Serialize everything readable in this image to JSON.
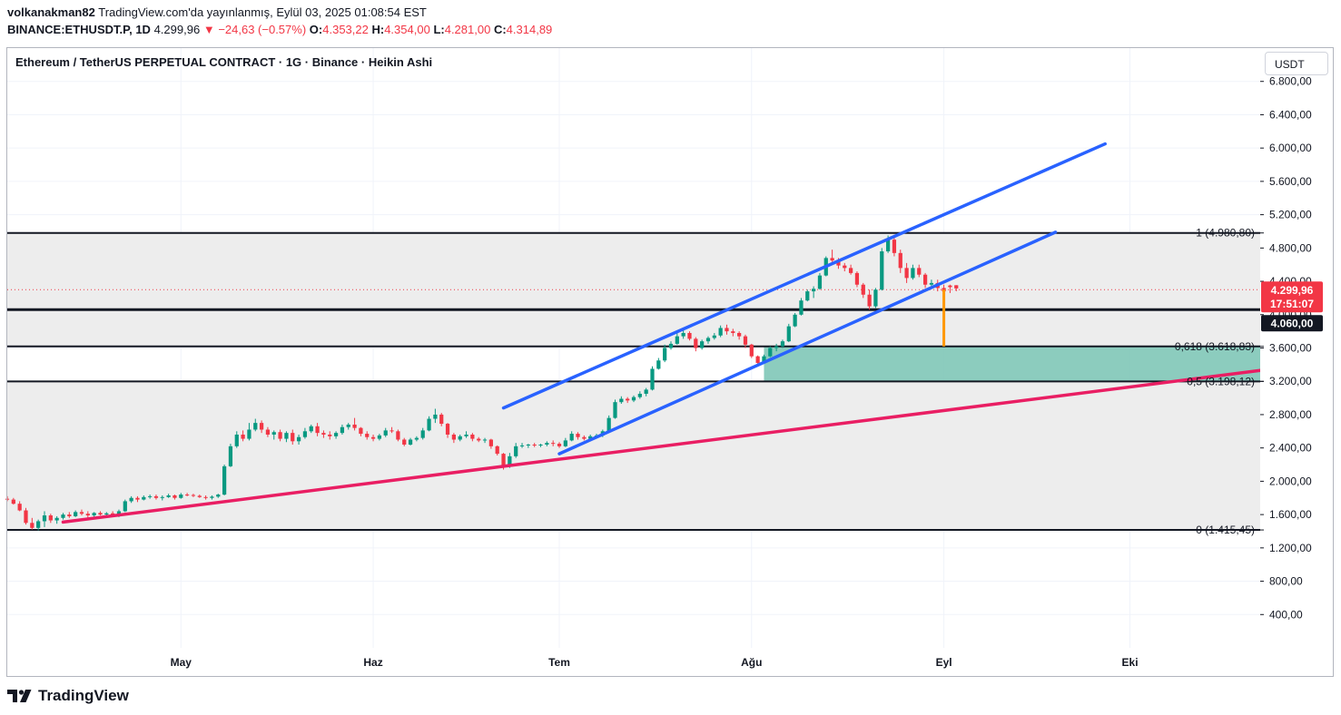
{
  "header": {
    "user": "volkanakman82",
    "published": "TradingView.com'da yayınlanmış, Eylül 03, 2025 01:08:54 EST",
    "symbol": "BINANCE:ETHUSDT.P, 1D",
    "last": "4.299,96",
    "change": "−24,63 (−0.57%)",
    "o_label": "O:",
    "o": "4.353,22",
    "h_label": "H:",
    "h": "4.354,00",
    "l_label": "L:",
    "l": "4.281,00",
    "c_label": "C:",
    "c": "4.314,89"
  },
  "chart_title": "Ethereum / TetherUS PERPETUAL CONTRACT · 1G · Binance · Heikin Ashi",
  "currency_button": "USDT",
  "footer": {
    "brand": "TradingView"
  },
  "colors": {
    "up": "#089981",
    "down": "#f23645",
    "channel": "#2962ff",
    "trend": "#e91e63",
    "zone": "#80c7b7",
    "band": "#ededed",
    "marker": "#ff9800"
  },
  "chart_data": {
    "type": "candlestick",
    "title": "Ethereum / TetherUS PERPETUAL CONTRACT · 1G · Binance · Heikin Ashi",
    "y_ticks": [
      400,
      800,
      1200,
      1600,
      2000,
      2400,
      2800,
      3200,
      3600,
      4000,
      4400,
      4800,
      5200,
      5600,
      6000,
      6400,
      6800
    ],
    "y_tick_labels": [
      "400,00",
      "800,00",
      "1.200,00",
      "1.600,00",
      "2.000,00",
      "2.400,00",
      "2.800,00",
      "3.200,00",
      "3.600,00",
      "4.000,00",
      "4.400,00",
      "4.800,00",
      "5.200,00",
      "5.600,00",
      "6.000,00",
      "6.400,00",
      "6.800,00"
    ],
    "ylim": [
      0,
      7200
    ],
    "x_months": [
      {
        "label": "May",
        "date": "2025-05-01"
      },
      {
        "label": "Haz",
        "date": "2025-06-01"
      },
      {
        "label": "Tem",
        "date": "2025-07-01"
      },
      {
        "label": "Ağu",
        "date": "2025-08-01"
      },
      {
        "label": "Eyl",
        "date": "2025-09-01"
      },
      {
        "label": "Eki",
        "date": "2025-10-01"
      }
    ],
    "xlim": [
      "2025-04-03",
      "2025-10-22"
    ],
    "current_price": {
      "value": 4299.96,
      "label": "4.299,96",
      "countdown": "17:51:07"
    },
    "support_line": {
      "value": 4060,
      "label": "4.060,00"
    },
    "fib_levels": [
      {
        "value": 4980.8,
        "label": "1 (4.980,80)"
      },
      {
        "value": 3618.83,
        "label": "0,618 (3.618,83)"
      },
      {
        "value": 3198.12,
        "label": "0,5 (3.198,12)"
      },
      {
        "value": 1415.45,
        "label": "0 (1.415,45)"
      }
    ],
    "trend_line": {
      "from": [
        "2025-04-12",
        1510
      ],
      "to": [
        "2025-10-22",
        3330
      ]
    },
    "channel_upper": {
      "from": [
        "2025-06-22",
        2880
      ],
      "to": [
        "2025-09-27",
        6050
      ]
    },
    "channel_lower": {
      "from": [
        "2025-07-01",
        2330
      ],
      "to": [
        "2025-09-19",
        4990
      ]
    },
    "target_zone": {
      "from": "2025-08-03",
      "to": "2025-10-22",
      "top": 3618.83,
      "bottom": 3198.12
    },
    "marker_line": {
      "date": "2025-09-01",
      "from": 4300,
      "to": 3618.83
    },
    "candles": [
      [
        "2025-04-03",
        1790,
        1820,
        1760,
        1780
      ],
      [
        "2025-04-04",
        1780,
        1800,
        1720,
        1730
      ],
      [
        "2025-04-05",
        1730,
        1760,
        1640,
        1650
      ],
      [
        "2025-04-06",
        1650,
        1680,
        1480,
        1500
      ],
      [
        "2025-04-07",
        1500,
        1560,
        1420,
        1440
      ],
      [
        "2025-04-08",
        1440,
        1540,
        1410,
        1520
      ],
      [
        "2025-04-09",
        1520,
        1640,
        1450,
        1590
      ],
      [
        "2025-04-10",
        1590,
        1610,
        1500,
        1530
      ],
      [
        "2025-04-11",
        1530,
        1580,
        1490,
        1560
      ],
      [
        "2025-04-12",
        1560,
        1620,
        1540,
        1600
      ],
      [
        "2025-04-13",
        1600,
        1630,
        1560,
        1580
      ],
      [
        "2025-04-14",
        1580,
        1650,
        1570,
        1630
      ],
      [
        "2025-04-15",
        1630,
        1660,
        1590,
        1610
      ],
      [
        "2025-04-16",
        1610,
        1640,
        1560,
        1590
      ],
      [
        "2025-04-17",
        1590,
        1630,
        1570,
        1620
      ],
      [
        "2025-04-18",
        1620,
        1640,
        1590,
        1600
      ],
      [
        "2025-04-19",
        1600,
        1630,
        1580,
        1615
      ],
      [
        "2025-04-20",
        1615,
        1640,
        1590,
        1600
      ],
      [
        "2025-04-21",
        1600,
        1660,
        1570,
        1640
      ],
      [
        "2025-04-22",
        1640,
        1780,
        1630,
        1760
      ],
      [
        "2025-04-23",
        1760,
        1820,
        1740,
        1800
      ],
      [
        "2025-04-24",
        1800,
        1820,
        1750,
        1780
      ],
      [
        "2025-04-25",
        1780,
        1830,
        1770,
        1810
      ],
      [
        "2025-04-26",
        1810,
        1840,
        1790,
        1820
      ],
      [
        "2025-04-27",
        1820,
        1840,
        1780,
        1800
      ],
      [
        "2025-04-28",
        1800,
        1830,
        1770,
        1810
      ],
      [
        "2025-04-29",
        1810,
        1850,
        1800,
        1830
      ],
      [
        "2025-04-30",
        1830,
        1840,
        1780,
        1800
      ],
      [
        "2025-05-01",
        1800,
        1860,
        1790,
        1840
      ],
      [
        "2025-05-02",
        1840,
        1860,
        1820,
        1835
      ],
      [
        "2025-05-03",
        1835,
        1850,
        1810,
        1825
      ],
      [
        "2025-05-04",
        1825,
        1840,
        1800,
        1810
      ],
      [
        "2025-05-05",
        1810,
        1830,
        1780,
        1800
      ],
      [
        "2025-05-06",
        1800,
        1830,
        1780,
        1815
      ],
      [
        "2025-05-07",
        1815,
        1850,
        1800,
        1840
      ],
      [
        "2025-05-08",
        1840,
        2200,
        1830,
        2180
      ],
      [
        "2025-05-09",
        2180,
        2450,
        2170,
        2420
      ],
      [
        "2025-05-10",
        2420,
        2600,
        2400,
        2560
      ],
      [
        "2025-05-11",
        2560,
        2610,
        2480,
        2510
      ],
      [
        "2025-05-12",
        2510,
        2700,
        2490,
        2620
      ],
      [
        "2025-05-13",
        2620,
        2750,
        2600,
        2700
      ],
      [
        "2025-05-14",
        2700,
        2730,
        2580,
        2620
      ],
      [
        "2025-05-15",
        2620,
        2650,
        2530,
        2560
      ],
      [
        "2025-05-16",
        2560,
        2610,
        2500,
        2590
      ],
      [
        "2025-05-17",
        2590,
        2620,
        2480,
        2510
      ],
      [
        "2025-05-18",
        2510,
        2600,
        2470,
        2580
      ],
      [
        "2025-05-19",
        2580,
        2620,
        2440,
        2480
      ],
      [
        "2025-05-20",
        2480,
        2560,
        2440,
        2530
      ],
      [
        "2025-05-21",
        2530,
        2640,
        2510,
        2600
      ],
      [
        "2025-05-22",
        2600,
        2680,
        2580,
        2660
      ],
      [
        "2025-05-23",
        2660,
        2700,
        2540,
        2580
      ],
      [
        "2025-05-24",
        2580,
        2610,
        2520,
        2560
      ],
      [
        "2025-05-25",
        2560,
        2600,
        2500,
        2540
      ],
      [
        "2025-05-26",
        2540,
        2600,
        2510,
        2580
      ],
      [
        "2025-05-27",
        2580,
        2680,
        2560,
        2650
      ],
      [
        "2025-05-28",
        2650,
        2700,
        2620,
        2680
      ],
      [
        "2025-05-29",
        2680,
        2760,
        2610,
        2640
      ],
      [
        "2025-05-30",
        2640,
        2650,
        2540,
        2570
      ],
      [
        "2025-05-31",
        2570,
        2600,
        2500,
        2530
      ],
      [
        "2025-06-01",
        2530,
        2560,
        2480,
        2510
      ],
      [
        "2025-06-02",
        2510,
        2570,
        2490,
        2550
      ],
      [
        "2025-06-03",
        2550,
        2640,
        2530,
        2610
      ],
      [
        "2025-06-04",
        2610,
        2650,
        2580,
        2600
      ],
      [
        "2025-06-05",
        2600,
        2620,
        2480,
        2500
      ],
      [
        "2025-06-06",
        2500,
        2520,
        2420,
        2440
      ],
      [
        "2025-06-07",
        2440,
        2520,
        2430,
        2500
      ],
      [
        "2025-06-08",
        2500,
        2540,
        2480,
        2520
      ],
      [
        "2025-06-09",
        2520,
        2640,
        2500,
        2610
      ],
      [
        "2025-06-10",
        2610,
        2780,
        2600,
        2750
      ],
      [
        "2025-06-11",
        2750,
        2870,
        2700,
        2800
      ],
      [
        "2025-06-12",
        2800,
        2820,
        2660,
        2690
      ],
      [
        "2025-06-13",
        2690,
        2700,
        2520,
        2560
      ],
      [
        "2025-06-14",
        2560,
        2580,
        2460,
        2500
      ],
      [
        "2025-06-15",
        2500,
        2560,
        2480,
        2540
      ],
      [
        "2025-06-16",
        2540,
        2600,
        2520,
        2560
      ],
      [
        "2025-06-17",
        2560,
        2580,
        2480,
        2510
      ],
      [
        "2025-06-18",
        2510,
        2530,
        2470,
        2490
      ],
      [
        "2025-06-19",
        2490,
        2520,
        2460,
        2500
      ],
      [
        "2025-06-20",
        2500,
        2510,
        2390,
        2420
      ],
      [
        "2025-06-21",
        2420,
        2430,
        2310,
        2330
      ],
      [
        "2025-06-22",
        2330,
        2340,
        2140,
        2190
      ],
      [
        "2025-06-23",
        2190,
        2340,
        2160,
        2300
      ],
      [
        "2025-06-24",
        2300,
        2460,
        2280,
        2420
      ],
      [
        "2025-06-25",
        2420,
        2460,
        2400,
        2430
      ],
      [
        "2025-06-26",
        2430,
        2450,
        2400,
        2440
      ],
      [
        "2025-06-27",
        2440,
        2460,
        2410,
        2430
      ],
      [
        "2025-06-28",
        2430,
        2450,
        2410,
        2440
      ],
      [
        "2025-06-29",
        2440,
        2480,
        2420,
        2460
      ],
      [
        "2025-06-30",
        2460,
        2490,
        2420,
        2450
      ],
      [
        "2025-07-01",
        2450,
        2470,
        2400,
        2420
      ],
      [
        "2025-07-02",
        2420,
        2520,
        2410,
        2490
      ],
      [
        "2025-07-03",
        2490,
        2600,
        2480,
        2570
      ],
      [
        "2025-07-04",
        2570,
        2590,
        2500,
        2530
      ],
      [
        "2025-07-05",
        2530,
        2550,
        2490,
        2510
      ],
      [
        "2025-07-06",
        2510,
        2560,
        2500,
        2540
      ],
      [
        "2025-07-07",
        2540,
        2570,
        2520,
        2550
      ],
      [
        "2025-07-08",
        2550,
        2620,
        2530,
        2600
      ],
      [
        "2025-07-09",
        2600,
        2790,
        2590,
        2760
      ],
      [
        "2025-07-10",
        2760,
        2980,
        2750,
        2950
      ],
      [
        "2025-07-11",
        2950,
        3020,
        2930,
        2990
      ],
      [
        "2025-07-12",
        2990,
        3010,
        2940,
        2970
      ],
      [
        "2025-07-13",
        2970,
        3030,
        2950,
        3010
      ],
      [
        "2025-07-14",
        3010,
        3080,
        2990,
        3050
      ],
      [
        "2025-07-15",
        3050,
        3120,
        3020,
        3100
      ],
      [
        "2025-07-16",
        3100,
        3380,
        3090,
        3350
      ],
      [
        "2025-07-17",
        3350,
        3480,
        3340,
        3450
      ],
      [
        "2025-07-18",
        3450,
        3640,
        3430,
        3600
      ],
      [
        "2025-07-19",
        3600,
        3680,
        3580,
        3650
      ],
      [
        "2025-07-20",
        3650,
        3780,
        3640,
        3740
      ],
      [
        "2025-07-21",
        3740,
        3820,
        3710,
        3780
      ],
      [
        "2025-07-22",
        3780,
        3800,
        3690,
        3710
      ],
      [
        "2025-07-23",
        3710,
        3730,
        3560,
        3600
      ],
      [
        "2025-07-24",
        3600,
        3700,
        3580,
        3680
      ],
      [
        "2025-07-25",
        3680,
        3740,
        3650,
        3720
      ],
      [
        "2025-07-26",
        3720,
        3780,
        3700,
        3750
      ],
      [
        "2025-07-27",
        3750,
        3870,
        3730,
        3840
      ],
      [
        "2025-07-28",
        3840,
        3880,
        3760,
        3800
      ],
      [
        "2025-07-29",
        3800,
        3830,
        3740,
        3780
      ],
      [
        "2025-07-30",
        3780,
        3800,
        3700,
        3740
      ],
      [
        "2025-07-31",
        3740,
        3760,
        3600,
        3640
      ],
      [
        "2025-08-01",
        3640,
        3650,
        3480,
        3500
      ],
      [
        "2025-08-02",
        3500,
        3510,
        3380,
        3420
      ],
      [
        "2025-08-03",
        3420,
        3520,
        3410,
        3500
      ],
      [
        "2025-08-04",
        3500,
        3620,
        3490,
        3600
      ],
      [
        "2025-08-05",
        3600,
        3650,
        3560,
        3620
      ],
      [
        "2025-08-06",
        3620,
        3700,
        3600,
        3680
      ],
      [
        "2025-08-07",
        3680,
        3890,
        3670,
        3860
      ],
      [
        "2025-08-08",
        3860,
        4020,
        3850,
        4000
      ],
      [
        "2025-08-09",
        4000,
        4200,
        3990,
        4170
      ],
      [
        "2025-08-10",
        4170,
        4300,
        4160,
        4280
      ],
      [
        "2025-08-11",
        4280,
        4340,
        4200,
        4310
      ],
      [
        "2025-08-12",
        4310,
        4500,
        4300,
        4470
      ],
      [
        "2025-08-13",
        4470,
        4700,
        4460,
        4680
      ],
      [
        "2025-08-14",
        4680,
        4780,
        4600,
        4650
      ],
      [
        "2025-08-15",
        4650,
        4680,
        4550,
        4590
      ],
      [
        "2025-08-16",
        4590,
        4620,
        4520,
        4560
      ],
      [
        "2025-08-17",
        4560,
        4600,
        4480,
        4500
      ],
      [
        "2025-08-18",
        4500,
        4520,
        4330,
        4360
      ],
      [
        "2025-08-19",
        4360,
        4380,
        4200,
        4240
      ],
      [
        "2025-08-20",
        4240,
        4300,
        4060,
        4100
      ],
      [
        "2025-08-21",
        4100,
        4320,
        4080,
        4300
      ],
      [
        "2025-08-22",
        4300,
        4800,
        4290,
        4760
      ],
      [
        "2025-08-23",
        4760,
        4950,
        4740,
        4900
      ],
      [
        "2025-08-24",
        4900,
        4960,
        4700,
        4740
      ],
      [
        "2025-08-25",
        4740,
        4780,
        4500,
        4560
      ],
      [
        "2025-08-26",
        4560,
        4620,
        4380,
        4440
      ],
      [
        "2025-08-27",
        4440,
        4600,
        4420,
        4560
      ],
      [
        "2025-08-28",
        4560,
        4600,
        4450,
        4480
      ],
      [
        "2025-08-29",
        4480,
        4500,
        4320,
        4360
      ],
      [
        "2025-08-30",
        4360,
        4420,
        4320,
        4380
      ],
      [
        "2025-08-31",
        4380,
        4420,
        4280,
        4320
      ],
      [
        "2025-09-01",
        4320,
        4360,
        4240,
        4280
      ],
      [
        "2025-09-02",
        4350,
        4360,
        4260,
        4330
      ],
      [
        "2025-09-03",
        4353,
        4354,
        4281,
        4315
      ]
    ]
  }
}
